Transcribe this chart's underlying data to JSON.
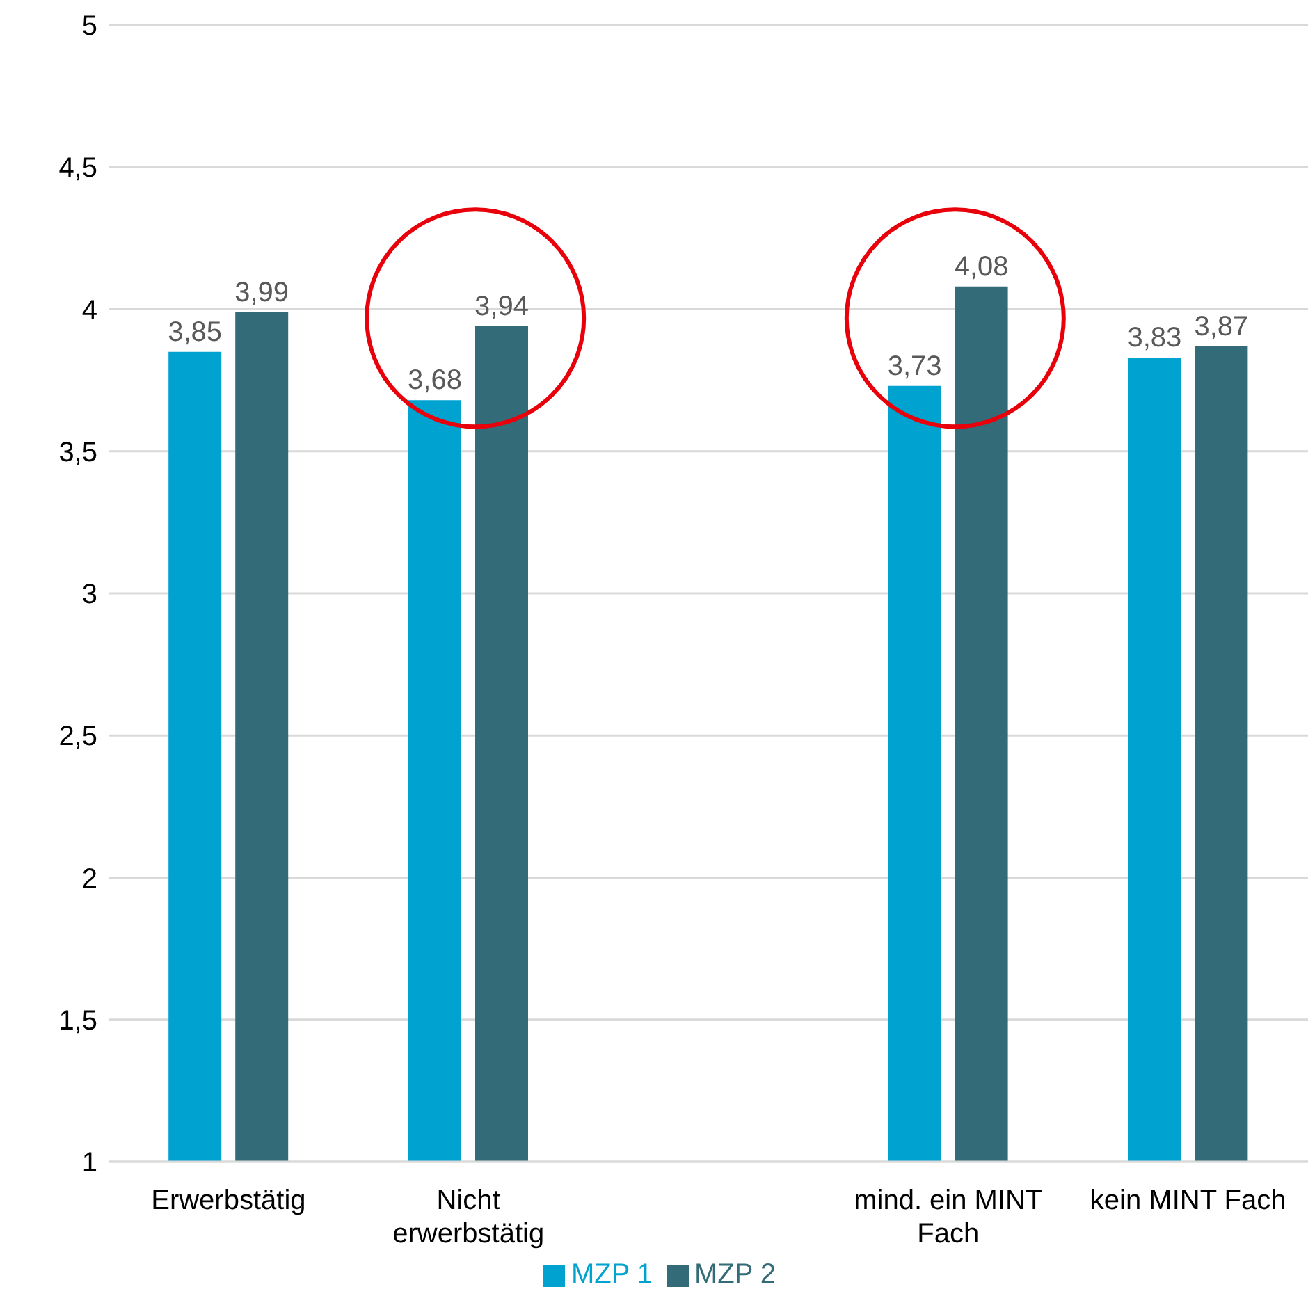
{
  "chart_data": {
    "type": "bar",
    "categories": [
      "Erwerbstätig",
      "Nicht erwerbstätig",
      null,
      "mind. ein MINT Fach",
      "kein MINT Fach"
    ],
    "series": [
      {
        "name": "MZP 1",
        "color": "#00a3d0",
        "values": [
          3.85,
          3.68,
          null,
          3.73,
          3.83
        ],
        "value_labels": [
          "3,85",
          "3,68",
          null,
          "3,73",
          "3,83"
        ]
      },
      {
        "name": "MZP 2",
        "color": "#346b79",
        "values": [
          3.99,
          3.94,
          null,
          4.08,
          3.87
        ],
        "value_labels": [
          "3,99",
          "3,94",
          null,
          "4,08",
          "3,87"
        ]
      }
    ],
    "ylim": [
      1,
      5
    ],
    "yticks": [
      1,
      {
        "value": 1.5,
        "label": "1,5"
      },
      2,
      {
        "value": 2.5,
        "label": "2,5"
      },
      3,
      {
        "value": 3.5,
        "label": "3,5"
      },
      4,
      {
        "value": 4.5,
        "label": "4,5"
      },
      5
    ],
    "grid": "y",
    "legend": "bottom"
  }
}
